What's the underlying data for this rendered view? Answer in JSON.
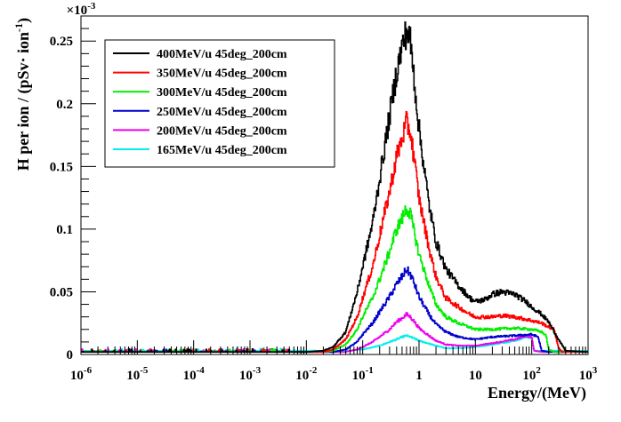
{
  "chart_data": {
    "type": "line",
    "title": "",
    "xlabel": "Energy/(MeV)",
    "ylabel_main": "H per ion / (pSv· ion",
    "ylabel_sup": "-1",
    "ylabel_tail": ")",
    "y_multiplier": "×10",
    "y_multiplier_exp": "-3",
    "x_scale": "log",
    "xlim": [
      1e-06,
      1000
    ],
    "ylim": [
      0,
      0.27
    ],
    "x_ticks": [
      {
        "v": 1e-06,
        "base": "10",
        "exp": "-6"
      },
      {
        "v": 1e-05,
        "base": "10",
        "exp": "-5"
      },
      {
        "v": 0.0001,
        "base": "10",
        "exp": "-4"
      },
      {
        "v": 0.001,
        "base": "10",
        "exp": "-3"
      },
      {
        "v": 0.01,
        "base": "10",
        "exp": "-2"
      },
      {
        "v": 0.1,
        "base": "10",
        "exp": "-1"
      },
      {
        "v": 1,
        "base": "1",
        "exp": ""
      },
      {
        "v": 10,
        "base": "10",
        "exp": ""
      },
      {
        "v": 100,
        "base": "10",
        "exp": "2"
      },
      {
        "v": 1000,
        "base": "10",
        "exp": "3"
      }
    ],
    "y_ticks": [
      {
        "v": 0,
        "label": "0"
      },
      {
        "v": 0.05,
        "label": "0.05"
      },
      {
        "v": 0.1,
        "label": "0.1"
      },
      {
        "v": 0.15,
        "label": "0.15"
      },
      {
        "v": 0.2,
        "label": "0.2"
      },
      {
        "v": 0.25,
        "label": "0.25"
      }
    ],
    "legend_position": "top-left",
    "grid": false,
    "series": [
      {
        "name": "400MeV/u 45deg_200cm",
        "color": "#000000",
        "peak": 0.258,
        "tail": 0.048,
        "points": [
          [
            1e-06,
            0.002
          ],
          [
            0.01,
            0.002
          ],
          [
            0.02,
            0.003
          ],
          [
            0.03,
            0.006
          ],
          [
            0.05,
            0.018
          ],
          [
            0.08,
            0.05
          ],
          [
            0.1,
            0.07
          ],
          [
            0.15,
            0.105
          ],
          [
            0.2,
            0.14
          ],
          [
            0.3,
            0.19
          ],
          [
            0.4,
            0.225
          ],
          [
            0.5,
            0.245
          ],
          [
            0.6,
            0.258
          ],
          [
            0.7,
            0.25
          ],
          [
            0.8,
            0.225
          ],
          [
            1,
            0.18
          ],
          [
            1.5,
            0.12
          ],
          [
            2,
            0.09
          ],
          [
            3,
            0.068
          ],
          [
            5,
            0.055
          ],
          [
            8,
            0.045
          ],
          [
            10,
            0.042
          ],
          [
            15,
            0.044
          ],
          [
            20,
            0.048
          ],
          [
            30,
            0.05
          ],
          [
            50,
            0.048
          ],
          [
            80,
            0.042
          ],
          [
            100,
            0.038
          ],
          [
            150,
            0.032
          ],
          [
            200,
            0.026
          ],
          [
            300,
            0.012
          ],
          [
            400,
            0.003
          ],
          [
            1000,
            0.002
          ]
        ]
      },
      {
        "name": "350MeV/u 45deg_200cm",
        "color": "#ff0000",
        "peak": 0.185,
        "tail": 0.03,
        "points": [
          [
            1e-06,
            0.002
          ],
          [
            0.02,
            0.002
          ],
          [
            0.03,
            0.004
          ],
          [
            0.05,
            0.012
          ],
          [
            0.08,
            0.03
          ],
          [
            0.1,
            0.045
          ],
          [
            0.15,
            0.07
          ],
          [
            0.2,
            0.095
          ],
          [
            0.3,
            0.13
          ],
          [
            0.4,
            0.158
          ],
          [
            0.5,
            0.172
          ],
          [
            0.6,
            0.185
          ],
          [
            0.7,
            0.178
          ],
          [
            0.8,
            0.16
          ],
          [
            1,
            0.125
          ],
          [
            1.5,
            0.085
          ],
          [
            2,
            0.062
          ],
          [
            3,
            0.045
          ],
          [
            5,
            0.038
          ],
          [
            8,
            0.032
          ],
          [
            10,
            0.03
          ],
          [
            20,
            0.03
          ],
          [
            30,
            0.031
          ],
          [
            50,
            0.03
          ],
          [
            80,
            0.028
          ],
          [
            100,
            0.027
          ],
          [
            150,
            0.025
          ],
          [
            200,
            0.022
          ],
          [
            250,
            0.02
          ],
          [
            300,
            0.005
          ],
          [
            350,
            0.002
          ],
          [
            1000,
            0.002
          ]
        ]
      },
      {
        "name": "300MeV/u 45deg_200cm",
        "color": "#00ee00",
        "peak": 0.117,
        "tail": 0.02,
        "points": [
          [
            1e-06,
            0.002
          ],
          [
            0.02,
            0.002
          ],
          [
            0.03,
            0.003
          ],
          [
            0.05,
            0.008
          ],
          [
            0.08,
            0.02
          ],
          [
            0.1,
            0.03
          ],
          [
            0.15,
            0.045
          ],
          [
            0.2,
            0.06
          ],
          [
            0.3,
            0.082
          ],
          [
            0.4,
            0.1
          ],
          [
            0.5,
            0.108
          ],
          [
            0.6,
            0.117
          ],
          [
            0.7,
            0.112
          ],
          [
            0.8,
            0.1
          ],
          [
            1,
            0.08
          ],
          [
            1.5,
            0.055
          ],
          [
            2,
            0.04
          ],
          [
            3,
            0.03
          ],
          [
            5,
            0.025
          ],
          [
            10,
            0.02
          ],
          [
            20,
            0.02
          ],
          [
            50,
            0.021
          ],
          [
            100,
            0.02
          ],
          [
            150,
            0.018
          ],
          [
            180,
            0.015
          ],
          [
            200,
            0.004
          ],
          [
            250,
            0.002
          ],
          [
            1000,
            0.002
          ]
        ]
      },
      {
        "name": "250MeV/u 45deg_200cm",
        "color": "#0000cc",
        "peak": 0.068,
        "tail": 0.015,
        "points": [
          [
            1e-06,
            0.002
          ],
          [
            0.03,
            0.002
          ],
          [
            0.05,
            0.004
          ],
          [
            0.08,
            0.01
          ],
          [
            0.1,
            0.016
          ],
          [
            0.15,
            0.025
          ],
          [
            0.2,
            0.034
          ],
          [
            0.3,
            0.046
          ],
          [
            0.4,
            0.056
          ],
          [
            0.5,
            0.062
          ],
          [
            0.6,
            0.068
          ],
          [
            0.7,
            0.064
          ],
          [
            0.8,
            0.058
          ],
          [
            1,
            0.046
          ],
          [
            1.5,
            0.032
          ],
          [
            2,
            0.024
          ],
          [
            3,
            0.018
          ],
          [
            5,
            0.014
          ],
          [
            10,
            0.012
          ],
          [
            20,
            0.014
          ],
          [
            50,
            0.015
          ],
          [
            100,
            0.016
          ],
          [
            130,
            0.014
          ],
          [
            150,
            0.003
          ],
          [
            200,
            0.002
          ],
          [
            1000,
            0.002
          ]
        ]
      },
      {
        "name": "200MeV/u 45deg_200cm",
        "color": "#ee00ee",
        "peak": 0.032,
        "tail": 0.015,
        "points": [
          [
            1e-06,
            0.002
          ],
          [
            0.05,
            0.002
          ],
          [
            0.08,
            0.004
          ],
          [
            0.1,
            0.006
          ],
          [
            0.15,
            0.01
          ],
          [
            0.2,
            0.014
          ],
          [
            0.3,
            0.02
          ],
          [
            0.4,
            0.026
          ],
          [
            0.5,
            0.029
          ],
          [
            0.6,
            0.032
          ],
          [
            0.7,
            0.03
          ],
          [
            0.8,
            0.027
          ],
          [
            1,
            0.021
          ],
          [
            1.5,
            0.015
          ],
          [
            2,
            0.011
          ],
          [
            3,
            0.008
          ],
          [
            5,
            0.007
          ],
          [
            10,
            0.007
          ],
          [
            20,
            0.009
          ],
          [
            50,
            0.012
          ],
          [
            80,
            0.015
          ],
          [
            100,
            0.014
          ],
          [
            110,
            0.003
          ],
          [
            150,
            0.002
          ],
          [
            1000,
            0.002
          ]
        ]
      },
      {
        "name": "165MeV/u 45deg_200cm",
        "color": "#00eeee",
        "peak": 0.015,
        "tail": 0.014,
        "points": [
          [
            1e-06,
            0.003
          ],
          [
            0.05,
            0.003
          ],
          [
            0.1,
            0.004
          ],
          [
            0.2,
            0.007
          ],
          [
            0.3,
            0.01
          ],
          [
            0.4,
            0.012
          ],
          [
            0.5,
            0.014
          ],
          [
            0.6,
            0.015
          ],
          [
            0.7,
            0.014
          ],
          [
            0.8,
            0.013
          ],
          [
            1,
            0.011
          ],
          [
            2,
            0.007
          ],
          [
            3,
            0.005
          ],
          [
            5,
            0.005
          ],
          [
            10,
            0.006
          ],
          [
            20,
            0.008
          ],
          [
            50,
            0.011
          ],
          [
            80,
            0.014
          ],
          [
            100,
            0.013
          ],
          [
            110,
            0.003
          ],
          [
            150,
            0.003
          ],
          [
            1000,
            0.003
          ]
        ]
      }
    ]
  }
}
